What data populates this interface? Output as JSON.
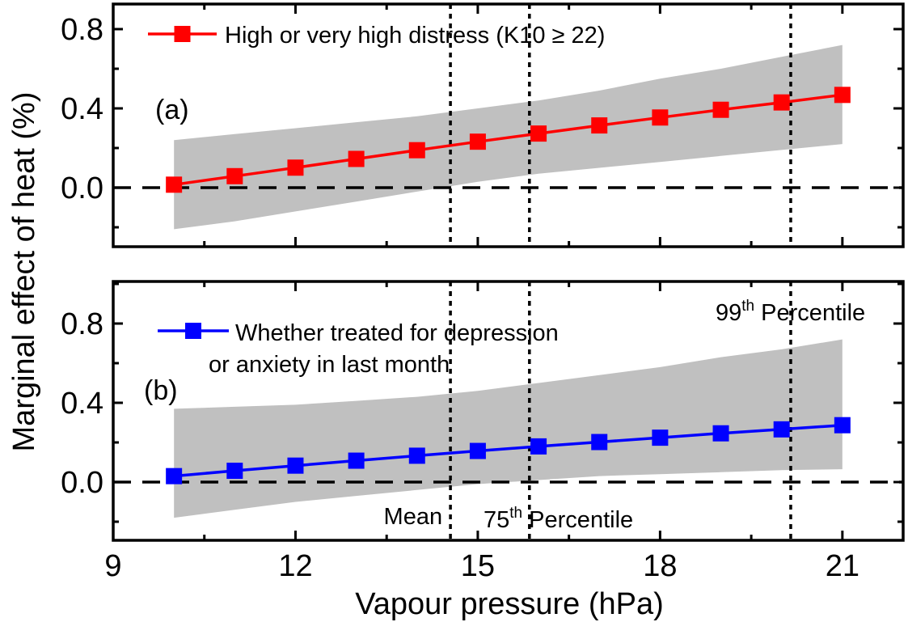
{
  "chart_data": [
    {
      "type": "line",
      "panel_label": "(a)",
      "x": [
        10,
        11,
        12,
        13,
        14,
        15,
        16,
        17,
        18,
        19,
        20,
        21
      ],
      "series": [
        {
          "name": "High or very high distress (K10 ≥ 22)",
          "color": "#ff0000",
          "marker": "square",
          "values": [
            0.015,
            0.058,
            0.101,
            0.145,
            0.189,
            0.232,
            0.273,
            0.314,
            0.354,
            0.393,
            0.43,
            0.468
          ],
          "ci_lower": [
            -0.21,
            -0.17,
            -0.12,
            -0.07,
            -0.02,
            0.03,
            0.07,
            0.1,
            0.13,
            0.16,
            0.19,
            0.22
          ],
          "ci_upper": [
            0.24,
            0.27,
            0.3,
            0.33,
            0.36,
            0.4,
            0.44,
            0.49,
            0.55,
            0.6,
            0.66,
            0.72
          ]
        }
      ],
      "ylim": [
        -0.18,
        0.9
      ],
      "yticks": [
        "0.0",
        "0.4",
        "0.8"
      ],
      "legend_position": "top-left",
      "reference_lines": {
        "horizontal_zero": 0.0
      }
    },
    {
      "type": "line",
      "panel_label": "(b)",
      "x": [
        10,
        11,
        12,
        13,
        14,
        15,
        16,
        17,
        18,
        19,
        20,
        21
      ],
      "series": [
        {
          "name_lines": [
            "Whether treated for depression",
            "or anxiety in last month"
          ],
          "color": "#0000ff",
          "marker": "square",
          "values": [
            0.03,
            0.057,
            0.083,
            0.108,
            0.133,
            0.157,
            0.18,
            0.202,
            0.224,
            0.246,
            0.266,
            0.287
          ],
          "ci_lower": [
            -0.18,
            -0.14,
            -0.1,
            -0.07,
            -0.04,
            -0.01,
            0.01,
            0.03,
            0.04,
            0.05,
            0.06,
            0.065
          ],
          "ci_upper": [
            0.37,
            0.38,
            0.39,
            0.41,
            0.43,
            0.46,
            0.5,
            0.54,
            0.58,
            0.63,
            0.67,
            0.72
          ]
        }
      ],
      "ylim": [
        -0.2,
        1.0
      ],
      "yticks": [
        "0.0",
        "0.4",
        "0.8"
      ],
      "legend_position": "top-left",
      "reference_lines": {
        "horizontal_zero": 0.0
      }
    }
  ],
  "shared": {
    "xlabel": "Vapour pressure (hPa)",
    "ylabel": "Marginal effect of heat (%)",
    "xlim": [
      9,
      22
    ],
    "xticks": [
      9,
      12,
      15,
      18,
      21
    ],
    "xtick_labels": [
      "9",
      "12",
      "15",
      "18",
      "21"
    ],
    "vertical_lines": [
      {
        "x": 14.55,
        "label": "Mean",
        "sup": ""
      },
      {
        "x": 15.85,
        "label": "Percentile",
        "sup_base": "75",
        "sup": "th"
      },
      {
        "x": 20.15,
        "label": "Percentile",
        "sup_base": "99",
        "sup": "th"
      }
    ],
    "ci_color": "#c0c0c0"
  }
}
